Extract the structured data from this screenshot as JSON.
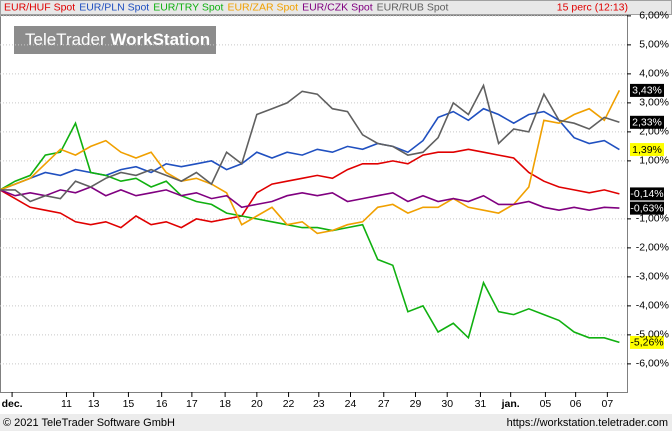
{
  "chart_data": {
    "type": "line",
    "interval": "15 perc (12:13)",
    "watermark": {
      "brand": "TeleTrader",
      "product": "WorkStation"
    },
    "copyright": "© 2021 TeleTrader Software GmbH",
    "source_url": "https://workstation.teletrader.com",
    "x": [
      0,
      1,
      2,
      3,
      4,
      5,
      6,
      7,
      8,
      9,
      10,
      11,
      12,
      13,
      14,
      15,
      16,
      17,
      18,
      19,
      20,
      21,
      22,
      23,
      24,
      25,
      26,
      27,
      28,
      29,
      30,
      31,
      32,
      33,
      34,
      35,
      36,
      37,
      38,
      39,
      40,
      41
    ],
    "xlim": [
      0,
      41.5
    ],
    "xticks": [
      {
        "value": 0.8,
        "label": "dec."
      },
      {
        "value": 4.4,
        "label": "11"
      },
      {
        "value": 6.2,
        "label": "13"
      },
      {
        "value": 8.5,
        "label": "15"
      },
      {
        "value": 10.7,
        "label": "16"
      },
      {
        "value": 12.7,
        "label": "17"
      },
      {
        "value": 14.9,
        "label": "18"
      },
      {
        "value": 17.0,
        "label": "20"
      },
      {
        "value": 19.1,
        "label": "22"
      },
      {
        "value": 21.1,
        "label": "23"
      },
      {
        "value": 23.2,
        "label": "24"
      },
      {
        "value": 25.4,
        "label": "27"
      },
      {
        "value": 27.5,
        "label": "29"
      },
      {
        "value": 29.6,
        "label": "30"
      },
      {
        "value": 31.8,
        "label": "31"
      },
      {
        "value": 33.8,
        "label": "jan."
      },
      {
        "value": 36.1,
        "label": "05"
      },
      {
        "value": 38.1,
        "label": "06"
      },
      {
        "value": 40.2,
        "label": "07"
      }
    ],
    "ylim": [
      -6.97,
      6.03
    ],
    "yticks": [
      {
        "value": 6,
        "label": "6,00%"
      },
      {
        "value": 5,
        "label": "5,00%"
      },
      {
        "value": 4,
        "label": "4,00%"
      },
      {
        "value": 3,
        "label": "3,00%"
      },
      {
        "value": 2,
        "label": "2,00%"
      },
      {
        "value": 1,
        "label": "1,00%"
      },
      {
        "value": -1,
        "label": "-1,00%"
      },
      {
        "value": -2,
        "label": "-2,00%"
      },
      {
        "value": -3,
        "label": "-3,00%"
      },
      {
        "value": -4,
        "label": "-4,00%"
      },
      {
        "value": -5,
        "label": "-5,00%"
      },
      {
        "value": -6,
        "label": "-6,00%"
      }
    ],
    "grid": true,
    "series": [
      {
        "name": "EUR/HUF Spot",
        "color": "#e00000",
        "label_color": "#000000",
        "values": [
          0,
          -0.3,
          -0.6,
          -0.7,
          -0.8,
          -1.1,
          -1.2,
          -1.1,
          -1.3,
          -0.9,
          -1.2,
          -1.1,
          -1.3,
          -1.0,
          -1.1,
          -1.0,
          -0.9,
          -0.1,
          0.2,
          0.3,
          0.4,
          0.5,
          0.4,
          0.7,
          0.9,
          0.9,
          1.0,
          0.9,
          1.2,
          1.3,
          1.3,
          1.4,
          1.3,
          1.2,
          1.1,
          0.6,
          0.3,
          0.1,
          0.0,
          -0.1,
          0.0,
          -0.14
        ],
        "value_labels": [
          null,
          null,
          null,
          null,
          null,
          null,
          null,
          null,
          null,
          null,
          null,
          null,
          null,
          null,
          null,
          null,
          null,
          null,
          null,
          null,
          null,
          null,
          null,
          null,
          null,
          null,
          null,
          null,
          null,
          null,
          null,
          null,
          null,
          null,
          null,
          null,
          null,
          null,
          null,
          null,
          null,
          "-0,14%"
        ]
      },
      {
        "name": "EUR/PLN Spot",
        "color": "#2050c0",
        "label_color": "#ffff00",
        "values": [
          0,
          0.2,
          0.4,
          0.6,
          0.5,
          0.7,
          0.6,
          0.5,
          0.7,
          0.8,
          0.6,
          0.9,
          0.8,
          0.9,
          1.0,
          0.7,
          0.9,
          1.3,
          1.1,
          1.3,
          1.2,
          1.4,
          1.3,
          1.5,
          1.4,
          1.6,
          1.5,
          1.3,
          1.7,
          2.5,
          2.7,
          2.4,
          2.8,
          2.6,
          2.3,
          2.6,
          2.7,
          2.4,
          1.8,
          1.6,
          1.7,
          1.39
        ],
        "value_labels": [
          null,
          null,
          null,
          null,
          null,
          null,
          null,
          null,
          null,
          null,
          null,
          null,
          null,
          null,
          null,
          null,
          null,
          null,
          null,
          null,
          null,
          null,
          null,
          null,
          null,
          null,
          null,
          null,
          null,
          null,
          null,
          null,
          null,
          null,
          null,
          null,
          null,
          null,
          null,
          null,
          null,
          "1,39%"
        ]
      },
      {
        "name": "EUR/TRY Spot",
        "color": "#10b010",
        "label_color": "#ffff00",
        "values": [
          0,
          0.3,
          0.5,
          1.2,
          1.3,
          2.3,
          0.6,
          0.5,
          0.3,
          0.4,
          0.1,
          0.3,
          -0.2,
          -0.4,
          -0.5,
          -0.8,
          -0.9,
          -1.0,
          -1.1,
          -1.2,
          -1.3,
          -1.3,
          -1.4,
          -1.3,
          -1.2,
          -2.4,
          -2.6,
          -4.2,
          -4.0,
          -4.9,
          -4.6,
          -5.1,
          -3.2,
          -4.2,
          -4.3,
          -4.1,
          -4.3,
          -4.5,
          -4.9,
          -5.1,
          -5.1,
          -5.26
        ],
        "value_labels": [
          null,
          null,
          null,
          null,
          null,
          null,
          null,
          null,
          null,
          null,
          null,
          null,
          null,
          null,
          null,
          null,
          null,
          null,
          null,
          null,
          null,
          null,
          null,
          null,
          null,
          null,
          null,
          null,
          null,
          null,
          null,
          null,
          null,
          null,
          null,
          null,
          null,
          null,
          null,
          null,
          null,
          "-5,26%"
        ]
      },
      {
        "name": "EUR/ZAR Spot",
        "color": "#f0a000",
        "label_color": "#000000",
        "values": [
          0,
          0.2,
          0.4,
          0.9,
          1.4,
          1.2,
          1.5,
          1.7,
          1.3,
          1.1,
          1.3,
          0.6,
          0.3,
          0.4,
          0.2,
          -0.1,
          -1.2,
          -0.9,
          -0.6,
          -1.2,
          -1.1,
          -1.5,
          -1.4,
          -1.2,
          -1.1,
          -0.6,
          -0.5,
          -0.8,
          -0.6,
          -0.6,
          -0.3,
          -0.6,
          -0.7,
          -0.8,
          -0.5,
          0.1,
          2.4,
          2.3,
          2.6,
          2.8,
          2.4,
          3.43
        ],
        "value_labels": [
          null,
          null,
          null,
          null,
          null,
          null,
          null,
          null,
          null,
          null,
          null,
          null,
          null,
          null,
          null,
          null,
          null,
          null,
          null,
          null,
          null,
          null,
          null,
          null,
          null,
          null,
          null,
          null,
          null,
          null,
          null,
          null,
          null,
          null,
          null,
          null,
          null,
          null,
          null,
          null,
          null,
          "3,43%"
        ]
      },
      {
        "name": "EUR/CZK Spot",
        "color": "#800080",
        "label_color": "#000000",
        "values": [
          0,
          -0.2,
          -0.1,
          -0.2,
          0.0,
          -0.1,
          0.1,
          -0.2,
          0.0,
          -0.2,
          -0.1,
          0.0,
          -0.2,
          -0.1,
          -0.3,
          -0.2,
          -0.6,
          -0.5,
          -0.4,
          -0.2,
          -0.1,
          -0.2,
          -0.1,
          -0.4,
          -0.3,
          -0.2,
          -0.1,
          -0.4,
          -0.2,
          -0.4,
          -0.3,
          -0.4,
          -0.2,
          -0.5,
          -0.5,
          -0.4,
          -0.6,
          -0.7,
          -0.6,
          -0.7,
          -0.6,
          -0.63
        ],
        "value_labels": [
          null,
          null,
          null,
          null,
          null,
          null,
          null,
          null,
          null,
          null,
          null,
          null,
          null,
          null,
          null,
          null,
          null,
          null,
          null,
          null,
          null,
          null,
          null,
          null,
          null,
          null,
          null,
          null,
          null,
          null,
          null,
          null,
          null,
          null,
          null,
          null,
          null,
          null,
          null,
          null,
          null,
          "-0,63%"
        ]
      },
      {
        "name": "EUR/RUB Spot",
        "color": "#606060",
        "label_color": "#000000",
        "values": [
          0,
          0.0,
          -0.4,
          -0.2,
          -0.3,
          0.3,
          0.1,
          0.4,
          0.6,
          0.5,
          0.7,
          0.5,
          0.3,
          0.6,
          0.2,
          1.3,
          0.9,
          2.6,
          2.8,
          3.0,
          3.4,
          3.3,
          2.8,
          2.7,
          1.9,
          1.6,
          1.5,
          1.2,
          1.3,
          1.8,
          3.0,
          2.6,
          3.6,
          1.6,
          2.1,
          2.0,
          3.3,
          2.4,
          2.3,
          2.1,
          2.5,
          2.33
        ],
        "value_labels": [
          null,
          null,
          null,
          null,
          null,
          null,
          null,
          null,
          null,
          null,
          null,
          null,
          null,
          null,
          null,
          null,
          null,
          null,
          null,
          null,
          null,
          null,
          null,
          null,
          null,
          null,
          null,
          null,
          null,
          null,
          null,
          null,
          null,
          null,
          null,
          null,
          null,
          null,
          null,
          null,
          null,
          "2,33%"
        ]
      }
    ]
  }
}
